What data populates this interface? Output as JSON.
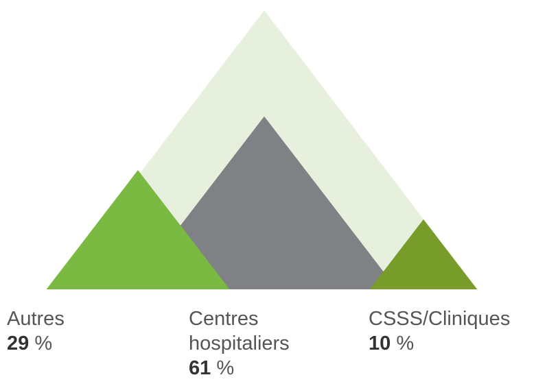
{
  "chart_data": {
    "type": "triangle",
    "categories": [
      "Autres",
      "Centres hospitaliers",
      "CSSS/Cliniques"
    ],
    "values": [
      29,
      61,
      10
    ],
    "unit": "%",
    "colors": [
      "#7aba42",
      "#808184",
      "#789c29"
    ]
  }
}
